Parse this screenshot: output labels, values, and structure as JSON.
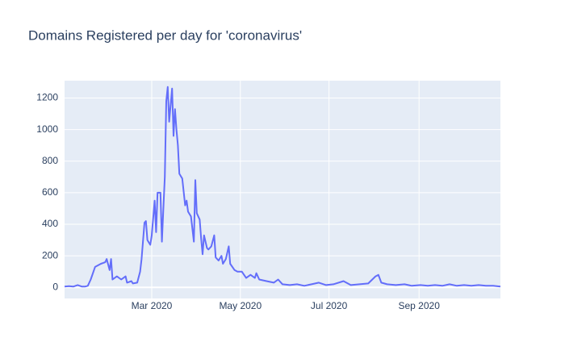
{
  "chart_data": {
    "type": "line",
    "title": "Domains Registered per day for 'coronavirus'",
    "x": [
      0,
      3,
      6,
      9,
      12,
      14,
      16,
      18,
      21,
      25,
      28,
      29,
      31,
      32,
      33,
      36,
      39,
      42,
      43,
      46,
      47,
      50,
      52,
      53,
      55,
      56,
      57,
      59,
      60,
      62,
      63,
      64,
      66,
      67,
      68,
      69,
      70,
      71,
      72,
      74,
      75,
      76,
      77,
      78,
      79,
      81,
      83,
      84,
      85,
      87,
      89,
      90,
      91,
      93,
      94,
      95,
      96,
      98,
      99,
      101,
      103,
      104,
      106,
      108,
      109,
      111,
      113,
      114,
      117,
      119,
      122,
      125,
      128,
      131,
      132,
      134,
      139,
      144,
      147,
      150,
      155,
      160,
      165,
      170,
      175,
      180,
      185,
      192,
      197,
      203,
      209,
      214,
      216,
      218,
      222,
      228,
      234,
      239,
      245,
      250,
      255,
      260,
      265,
      270,
      275,
      280,
      285,
      290,
      295,
      300
    ],
    "values": [
      5,
      8,
      5,
      15,
      5,
      5,
      10,
      50,
      130,
      150,
      160,
      180,
      110,
      180,
      50,
      70,
      50,
      70,
      30,
      40,
      25,
      30,
      100,
      180,
      410,
      420,
      300,
      270,
      330,
      550,
      350,
      600,
      600,
      290,
      500,
      700,
      1180,
      1270,
      1050,
      1260,
      960,
      1130,
      1000,
      900,
      720,
      690,
      520,
      550,
      480,
      450,
      290,
      680,
      470,
      430,
      310,
      210,
      330,
      250,
      240,
      260,
      330,
      190,
      170,
      200,
      150,
      180,
      260,
      150,
      110,
      100,
      100,
      60,
      80,
      60,
      90,
      50,
      40,
      30,
      50,
      20,
      15,
      20,
      10,
      20,
      30,
      15,
      20,
      40,
      15,
      20,
      25,
      70,
      80,
      30,
      20,
      15,
      20,
      10,
      15,
      10,
      15,
      10,
      20,
      10,
      15,
      10,
      15,
      10,
      10,
      5
    ],
    "color": "#636efa",
    "xlim": [
      0,
      300
    ],
    "xticks": [
      {
        "value": 60,
        "label": "Mar 2020"
      },
      {
        "value": 121,
        "label": "May 2020"
      },
      {
        "value": 182,
        "label": "Jul 2020"
      },
      {
        "value": 244,
        "label": "Sep 2020"
      }
    ],
    "ylim": [
      -70,
      1310
    ],
    "yticks": [
      0,
      200,
      400,
      600,
      800,
      1000,
      1200
    ],
    "grid": true
  }
}
